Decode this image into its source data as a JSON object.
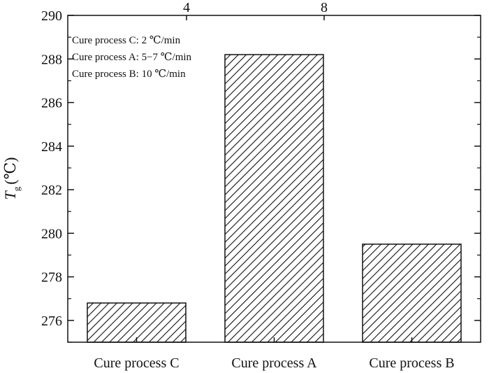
{
  "chart_data": {
    "type": "bar",
    "categories": [
      "Cure process C",
      "Cure process A",
      "Cure process B"
    ],
    "values": [
      276.8,
      288.2,
      279.5
    ],
    "ylim": [
      275,
      290
    ],
    "yticks": [
      276,
      278,
      280,
      282,
      284,
      286,
      288,
      290
    ],
    "top_axis_ticks": [
      "4",
      "8"
    ],
    "ylabel": {
      "symbol": "T",
      "subscript": "g",
      "unit": "(℃)"
    },
    "annotations": [
      "Cure process C: 2 ℃/min",
      "Cure process A: 5−7 ℃/min",
      "Cure process B: 10 ℃/min"
    ],
    "bar_fill": "diagonal-hatch",
    "grid": false,
    "colors": {
      "stroke": "#111111",
      "background": "#ffffff"
    }
  }
}
